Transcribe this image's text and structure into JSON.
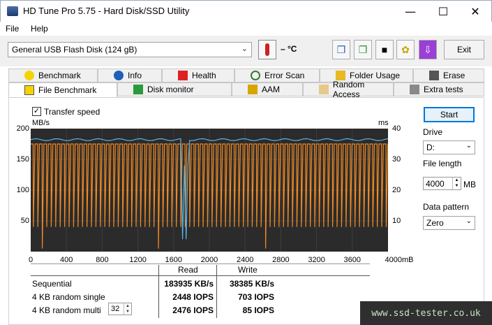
{
  "window": {
    "title": "HD Tune Pro 5.75 - Hard Disk/SSD Utility"
  },
  "menu": {
    "items": [
      "File",
      "Help"
    ]
  },
  "toolbar": {
    "drive": "General USB Flash Disk (124 gB)",
    "temperature": "– °C",
    "exit_label": "Exit",
    "icons": [
      "copy-info-icon",
      "copy-all-icon",
      "screenshot-icon",
      "options-icon",
      "save-icon"
    ]
  },
  "tabs": {
    "row1": [
      "Benchmark",
      "Info",
      "Health",
      "Error Scan",
      "Folder Usage",
      "Erase"
    ],
    "row2": [
      "File Benchmark",
      "Disk monitor",
      "AAM",
      "Random Access",
      "Extra tests"
    ]
  },
  "benchmark": {
    "transfer_speed_label": "Transfer speed",
    "unit_left": "MB/s",
    "unit_right": "ms",
    "y_left_ticks": [
      "200",
      "150",
      "100",
      "50"
    ],
    "y_right_ticks": [
      "40",
      "30",
      "20",
      "10"
    ],
    "x_ticks": [
      "0",
      "400",
      "800",
      "1200",
      "1600",
      "2000",
      "2400",
      "2800",
      "3200",
      "3600",
      "4000mB"
    ],
    "results": {
      "read_header": "Read",
      "write_header": "Write",
      "rows": [
        {
          "label": "Sequential",
          "read": "183935 KB/s",
          "write": "38385 KB/s"
        },
        {
          "label": "4 KB random single",
          "read": "2448 IOPS",
          "write": "703 IOPS"
        },
        {
          "label": "4 KB random multi",
          "read": "2476 IOPS",
          "write": "85 IOPS"
        }
      ],
      "queue_depth": "32"
    }
  },
  "controls": {
    "start_label": "Start",
    "drive_label": "Drive",
    "drive_value": "D:",
    "file_length_label": "File length",
    "file_length_value": "4000",
    "file_length_unit": "MB",
    "data_pattern_label": "Data pattern",
    "data_pattern_value": "Zero"
  },
  "watermark": "www.ssd-tester.co.uk",
  "chart_data": {
    "type": "line",
    "x_range": [
      0,
      4000
    ],
    "y_left_range": [
      0,
      200
    ],
    "y_right_range": [
      0,
      40
    ],
    "series": [
      {
        "name": "Read",
        "color": "#5ab4e8",
        "typical_value": 182,
        "dip_x": [
          1700,
          1760
        ],
        "dip_value": 20
      },
      {
        "name": "Write",
        "color": "#f08a24",
        "high_value": 175,
        "low_value": 40,
        "cycle_period_mb": 50,
        "deep_dips_x": [
          100,
          1400,
          2600
        ],
        "deep_dip_value": 5
      }
    ],
    "grid": true
  }
}
